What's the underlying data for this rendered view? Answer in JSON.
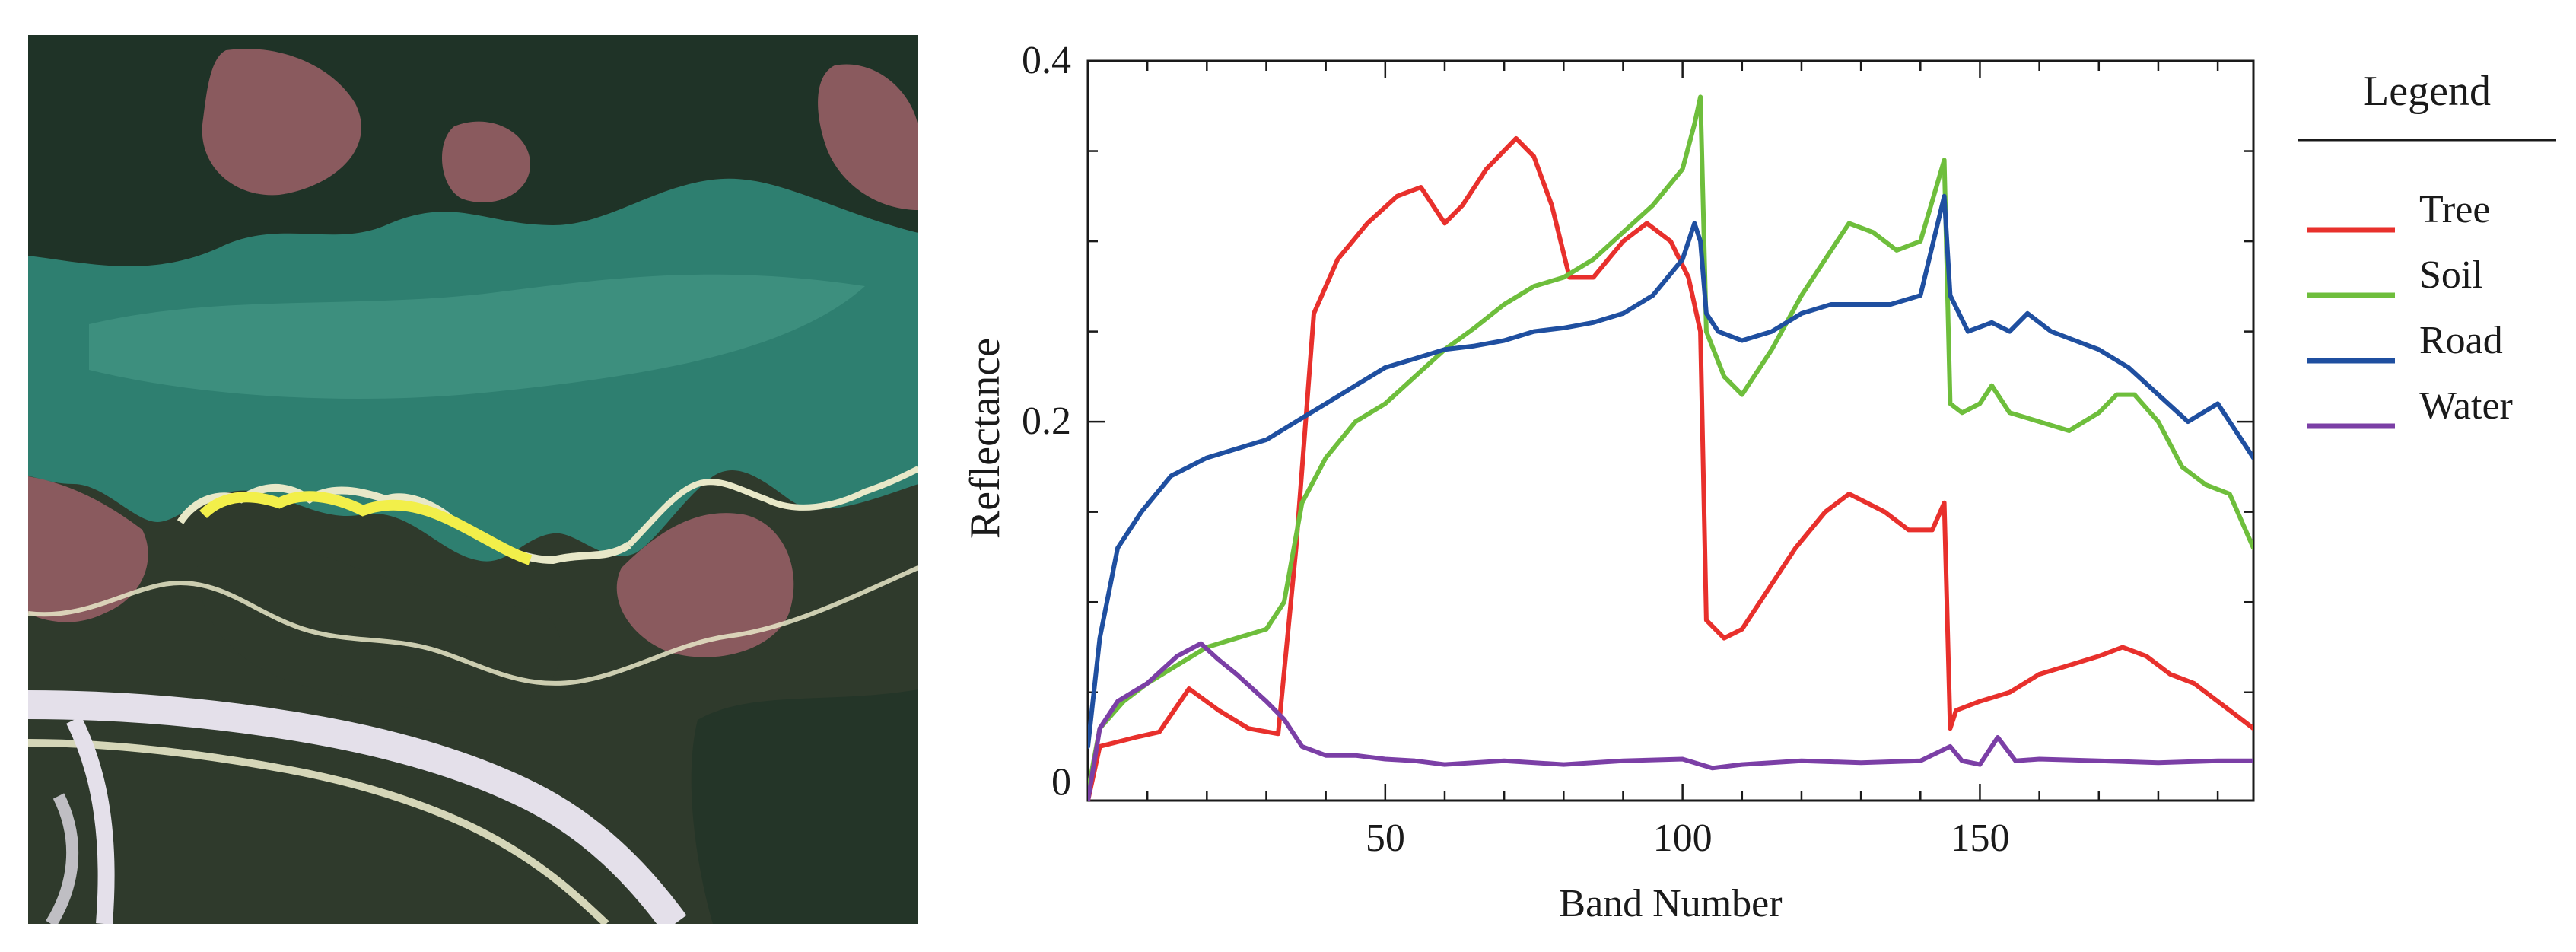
{
  "scene": {
    "description_icon": "satellite-image",
    "colors": {
      "lake": "#2e7f70",
      "lake_light": "#4a9c8a",
      "dark_green": "#1f3327",
      "bare_soil": "#8a5a5e",
      "road": "#e4e0ea",
      "shore": "#e8e8c8",
      "highlight": "#f2ef4a",
      "forest": "#2f3a2c"
    }
  },
  "chart_data": {
    "type": "line",
    "title": "",
    "xlabel": "Band Number",
    "ylabel": "Reflectance",
    "xlim": [
      0,
      196
    ],
    "ylim": [
      -0.01,
      0.4
    ],
    "xticks": [
      50,
      100,
      150
    ],
    "xtick_labels": [
      "50",
      "100",
      "150"
    ],
    "yticks": [
      0,
      0.2,
      0.4
    ],
    "ytick_labels": [
      "0",
      "0.2",
      "0.4"
    ],
    "legend": {
      "title": "Legend",
      "placement": "right"
    },
    "series": [
      {
        "name": "Tree",
        "color": "#e8302c",
        "x": [
          0,
          2,
          8,
          12,
          17,
          22,
          27,
          32,
          35,
          38,
          42,
          47,
          52,
          56,
          60,
          63,
          67,
          72,
          75,
          78,
          81,
          85,
          90,
          94,
          98,
          101,
          103,
          104,
          107,
          110,
          114,
          119,
          124,
          128,
          131,
          134,
          138,
          142,
          144,
          145,
          146,
          150,
          155,
          160,
          165,
          170,
          174,
          178,
          182,
          186,
          190,
          194,
          196
        ],
        "values": [
          -0.01,
          0.02,
          0.025,
          0.028,
          0.052,
          0.04,
          0.03,
          0.027,
          0.13,
          0.26,
          0.29,
          0.31,
          0.325,
          0.33,
          0.31,
          0.32,
          0.34,
          0.357,
          0.347,
          0.32,
          0.28,
          0.28,
          0.3,
          0.31,
          0.3,
          0.28,
          0.25,
          0.09,
          0.08,
          0.085,
          0.105,
          0.13,
          0.15,
          0.16,
          0.155,
          0.15,
          0.14,
          0.14,
          0.155,
          0.03,
          0.04,
          0.045,
          0.05,
          0.06,
          0.065,
          0.07,
          0.075,
          0.07,
          0.06,
          0.055,
          0.045,
          0.035,
          0.03
        ]
      },
      {
        "name": "Soil",
        "color": "#6ebe3c",
        "x": [
          0,
          2,
          6,
          10,
          15,
          20,
          25,
          30,
          33,
          36,
          40,
          45,
          50,
          55,
          60,
          65,
          70,
          75,
          80,
          85,
          90,
          95,
          100,
          102,
          103,
          104,
          107,
          110,
          115,
          120,
          125,
          128,
          132,
          136,
          140,
          144,
          145,
          147,
          150,
          152,
          155,
          160,
          165,
          170,
          173,
          176,
          180,
          184,
          188,
          192,
          196
        ],
        "values": [
          -0.005,
          0.03,
          0.045,
          0.055,
          0.065,
          0.075,
          0.08,
          0.085,
          0.1,
          0.155,
          0.18,
          0.2,
          0.21,
          0.225,
          0.24,
          0.252,
          0.265,
          0.275,
          0.28,
          0.29,
          0.305,
          0.32,
          0.34,
          0.365,
          0.38,
          0.25,
          0.225,
          0.215,
          0.24,
          0.27,
          0.295,
          0.31,
          0.305,
          0.295,
          0.3,
          0.345,
          0.21,
          0.205,
          0.21,
          0.22,
          0.205,
          0.2,
          0.195,
          0.205,
          0.215,
          0.215,
          0.2,
          0.175,
          0.165,
          0.16,
          0.13
        ]
      },
      {
        "name": "Road",
        "color": "#1f4fa0",
        "x": [
          0,
          2,
          5,
          9,
          14,
          20,
          25,
          30,
          35,
          40,
          45,
          50,
          55,
          60,
          65,
          70,
          75,
          80,
          85,
          90,
          95,
          100,
          102,
          103,
          104,
          106,
          110,
          115,
          120,
          125,
          130,
          135,
          140,
          144,
          145,
          148,
          152,
          155,
          158,
          162,
          166,
          170,
          175,
          180,
          185,
          190,
          194,
          196
        ],
        "values": [
          0.02,
          0.08,
          0.13,
          0.15,
          0.17,
          0.18,
          0.185,
          0.19,
          0.2,
          0.21,
          0.22,
          0.23,
          0.235,
          0.24,
          0.242,
          0.245,
          0.25,
          0.252,
          0.255,
          0.26,
          0.27,
          0.29,
          0.31,
          0.3,
          0.26,
          0.25,
          0.245,
          0.25,
          0.26,
          0.265,
          0.265,
          0.265,
          0.27,
          0.325,
          0.27,
          0.25,
          0.255,
          0.25,
          0.26,
          0.25,
          0.245,
          0.24,
          0.23,
          0.215,
          0.2,
          0.21,
          0.19,
          0.18
        ]
      },
      {
        "name": "Water",
        "color": "#7b3fa6",
        "x": [
          0,
          2,
          5,
          10,
          15,
          19,
          22,
          25,
          30,
          33,
          36,
          40,
          45,
          50,
          55,
          60,
          70,
          80,
          90,
          100,
          105,
          110,
          120,
          130,
          140,
          145,
          147,
          150,
          153,
          156,
          160,
          170,
          180,
          190,
          196
        ],
        "values": [
          -0.01,
          0.03,
          0.045,
          0.055,
          0.07,
          0.077,
          0.068,
          0.06,
          0.045,
          0.035,
          0.02,
          0.015,
          0.015,
          0.013,
          0.012,
          0.01,
          0.012,
          0.01,
          0.012,
          0.013,
          0.008,
          0.01,
          0.012,
          0.011,
          0.012,
          0.02,
          0.012,
          0.01,
          0.025,
          0.012,
          0.013,
          0.012,
          0.011,
          0.012,
          0.012
        ]
      }
    ]
  }
}
